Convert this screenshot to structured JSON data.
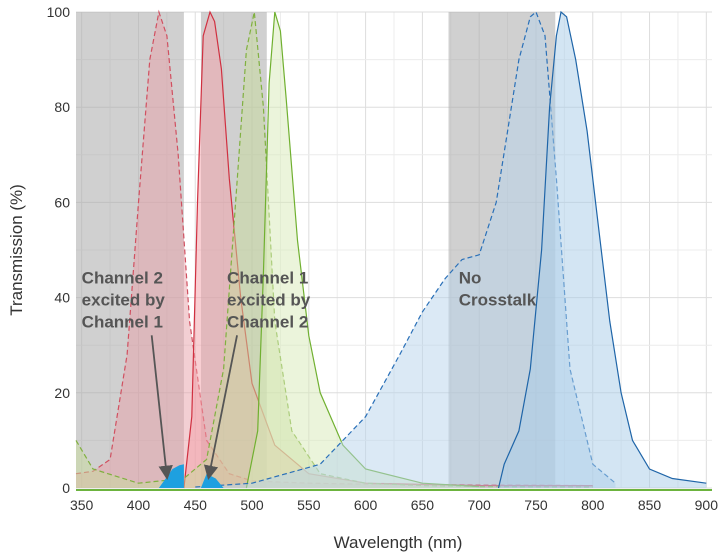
{
  "chart_data": {
    "type": "line",
    "xlabel": "Wavelength (nm)",
    "ylabel": "Transmission (%)",
    "xlim": [
      345,
      905
    ],
    "ylim": [
      0,
      100
    ],
    "x_ticks": [
      350,
      400,
      450,
      500,
      550,
      600,
      650,
      700,
      750,
      800,
      850,
      900
    ],
    "y_ticks": [
      0,
      20,
      40,
      60,
      80,
      100
    ],
    "grid": true,
    "shaded_bands": [
      {
        "x0": 345,
        "x1": 440,
        "color": "#aaaaaa"
      },
      {
        "x0": 455,
        "x1": 513,
        "color": "#aaaaaa"
      },
      {
        "x0": 673,
        "x1": 767,
        "color": "#aaaaaa"
      }
    ],
    "series": [
      {
        "style": "dashed",
        "color": "#d05060",
        "fill": "#e8a0a8",
        "x": [
          345,
          360,
          375,
          390,
          400,
          410,
          418,
          425,
          435,
          445,
          460,
          480,
          500,
          550,
          600,
          800
        ],
        "values": [
          3,
          3.5,
          6,
          28,
          60,
          90,
          100,
          95,
          70,
          35,
          10,
          3,
          1.5,
          1,
          0.8,
          0.5
        ]
      },
      {
        "style": "solid",
        "color": "#d03040",
        "fill": "#f4a0a8",
        "x": [
          440,
          447,
          452,
          457,
          463,
          467,
          473,
          480,
          490,
          500,
          520,
          550,
          600,
          700,
          800
        ],
        "values": [
          0,
          15,
          60,
          95,
          100,
          98,
          88,
          65,
          40,
          22,
          9,
          3,
          1,
          0.5,
          0.5
        ]
      },
      {
        "style": "dashed",
        "color": "#80b040",
        "fill": "#c8dc9c",
        "x": [
          345,
          360,
          400,
          440,
          460,
          475,
          487,
          495,
          502,
          510,
          520,
          535,
          560,
          600,
          650,
          700,
          800
        ],
        "values": [
          10,
          4,
          1,
          2,
          6,
          25,
          65,
          92,
          100,
          80,
          35,
          12,
          3,
          1,
          0.5,
          0.3,
          0.2
        ]
      },
      {
        "style": "solid",
        "color": "#70b030",
        "fill": "#d8eab8",
        "x": [
          495,
          505,
          510,
          515,
          520,
          525,
          530,
          540,
          550,
          560,
          580,
          600,
          650,
          700
        ],
        "values": [
          0,
          12,
          45,
          85,
          100,
          96,
          82,
          52,
          32,
          20,
          9,
          4,
          1,
          0.3
        ]
      },
      {
        "style": "dashed",
        "color": "#2a70b8",
        "fill": "#b8d4ec",
        "x": [
          450,
          500,
          560,
          600,
          630,
          650,
          670,
          685,
          700,
          715,
          725,
          735,
          745,
          750,
          758,
          768,
          780,
          800,
          820
        ],
        "values": [
          0.2,
          1,
          5,
          15,
          28,
          37,
          44,
          48,
          49,
          60,
          75,
          90,
          99,
          100,
          95,
          65,
          25,
          5,
          1
        ]
      },
      {
        "style": "solid",
        "color": "#1f65a8",
        "fill": "#a8cce8",
        "x": [
          717,
          722,
          735,
          745,
          755,
          762,
          768,
          772,
          777,
          785,
          795,
          805,
          815,
          825,
          835,
          850,
          870,
          900
        ],
        "values": [
          0,
          5,
          12,
          25,
          50,
          80,
          95,
          100,
          99,
          90,
          75,
          55,
          35,
          20,
          10,
          4,
          2,
          1
        ]
      }
    ],
    "crosstalk_regions": [
      {
        "x": [
          418,
          424,
          430,
          436,
          440
        ],
        "values": [
          0,
          2,
          4,
          4.8,
          5
        ],
        "color": "#1ea0e0"
      },
      {
        "x": [
          455,
          460,
          468,
          475
        ],
        "values": [
          0,
          3,
          2,
          0
        ],
        "color": "#1ea0e0"
      }
    ],
    "annotations": [
      {
        "lines": [
          "Channel 2",
          "excited by",
          "Channel 1"
        ],
        "x": 350,
        "y": 43,
        "arrow_to": [
          425,
          2
        ]
      },
      {
        "lines": [
          "Channel 1",
          "excited by",
          "Channel 2"
        ],
        "x": 478,
        "y": 43,
        "arrow_to": [
          462,
          2
        ]
      },
      {
        "lines": [
          "No",
          "Crosstalk"
        ],
        "x": 682,
        "y": 43
      }
    ]
  }
}
